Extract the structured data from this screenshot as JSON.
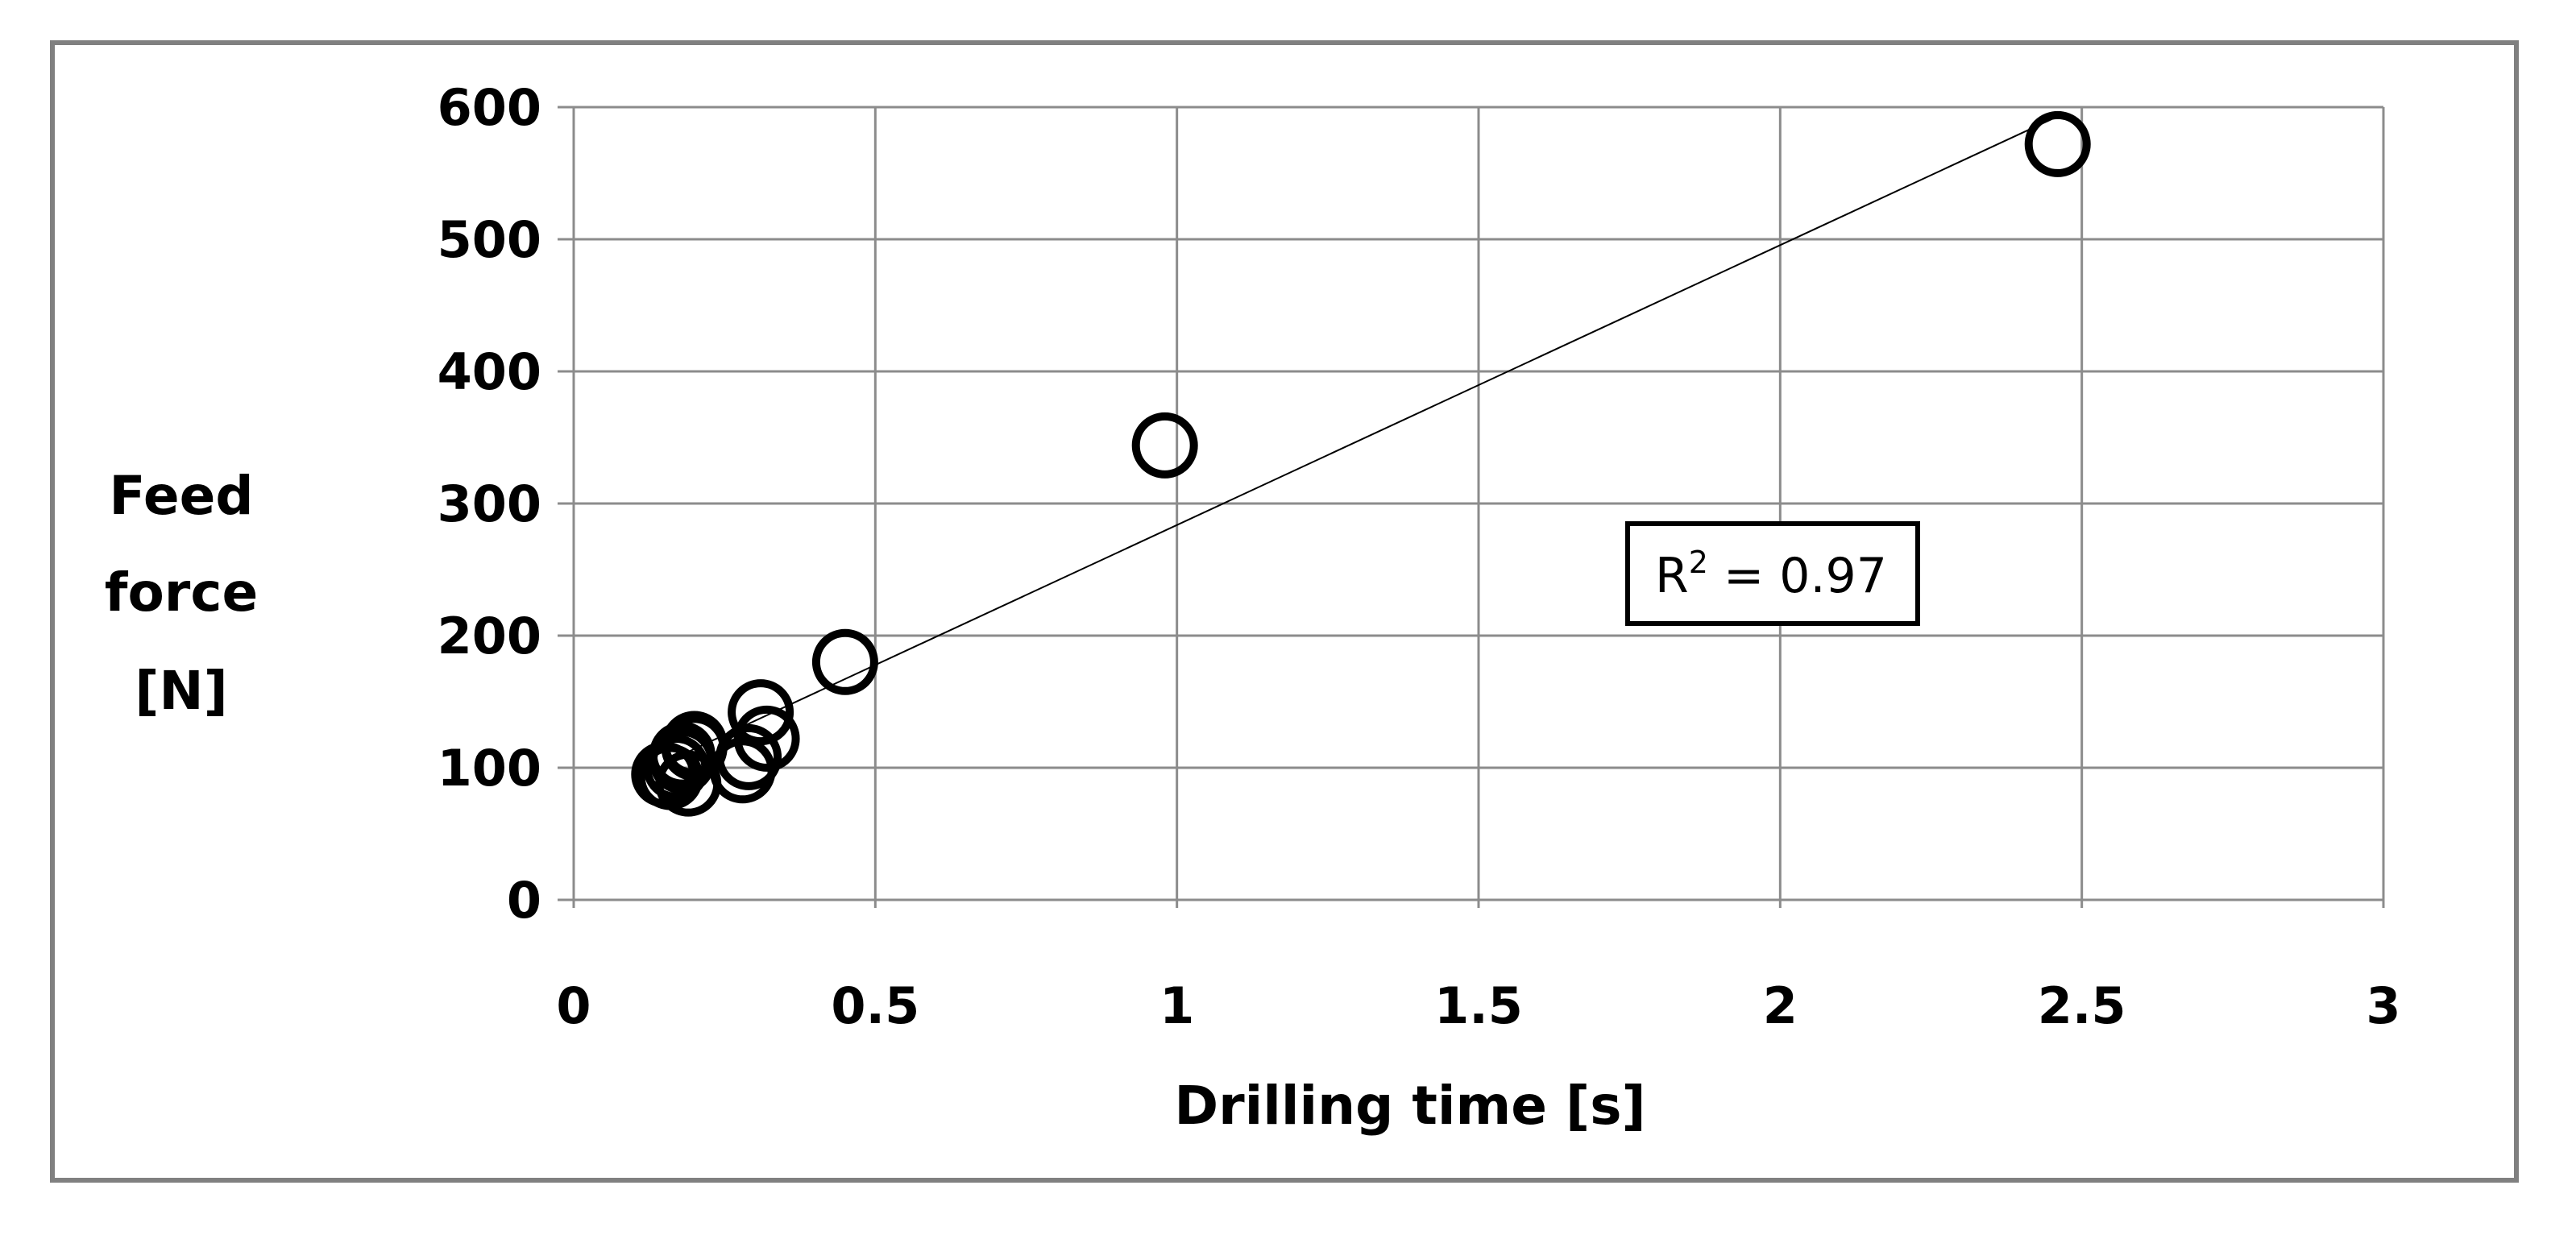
{
  "chart_data": {
    "type": "scatter",
    "xlabel": "Drilling time [s]",
    "ylabel_lines": [
      "Feed",
      "force",
      "[N]"
    ],
    "xlim": [
      0,
      3
    ],
    "ylim": [
      0,
      600
    ],
    "x_ticks": [
      0,
      0.5,
      1,
      1.5,
      2,
      2.5,
      3
    ],
    "x_tick_labels": [
      "0",
      "0.5",
      "1",
      "1.5",
      "2",
      "2.5",
      "3"
    ],
    "y_ticks": [
      0,
      100,
      200,
      300,
      400,
      500,
      600
    ],
    "y_tick_labels": [
      "0",
      "100",
      "200",
      "300",
      "400",
      "500",
      "600"
    ],
    "grid": true,
    "marker": "open-circle",
    "marker_color": "#000000",
    "series": [
      {
        "x": [
          0.15,
          0.16,
          0.17,
          0.18,
          0.18,
          0.19,
          0.2,
          0.2,
          0.28,
          0.29,
          0.31,
          0.32,
          0.45,
          0.98,
          2.46
        ],
        "y": [
          95,
          93,
          100,
          105,
          110,
          88,
          115,
          118,
          98,
          108,
          142,
          122,
          180,
          344,
          572
        ]
      }
    ],
    "trendline": {
      "type": "linear",
      "x": [
        0.18,
        2.46
      ],
      "y": [
        110,
        593
      ]
    },
    "annotation": {
      "r_prefix": "R",
      "superscript": "2",
      "value_text": " = 0.97"
    }
  }
}
